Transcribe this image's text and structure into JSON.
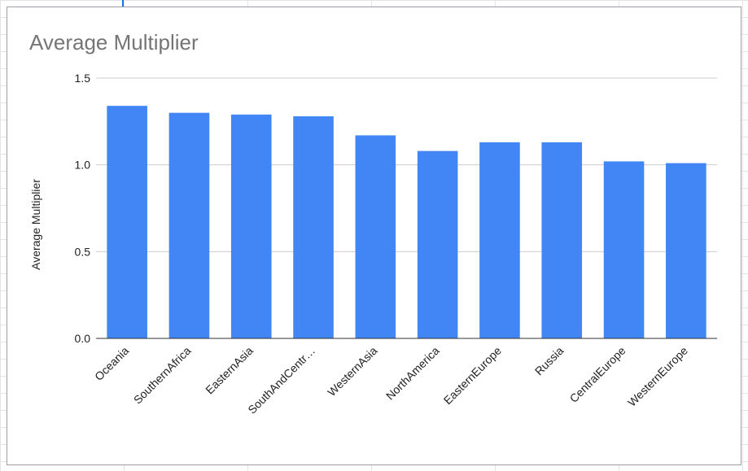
{
  "chart_data": {
    "type": "bar",
    "title": "Average Multiplier",
    "xlabel": "",
    "ylabel": "Average Multiplier",
    "ylim": [
      0,
      1.5
    ],
    "yticks": [
      0.0,
      0.5,
      1.0,
      1.5
    ],
    "ytick_labels": [
      "0.0",
      "0.5",
      "1.0",
      "1.5"
    ],
    "grid": true,
    "legend": "none",
    "bar_color": "#4285f4",
    "categories": [
      "Oceania",
      "SouthernAfrica",
      "EasternAsia",
      "SouthAndCentr…",
      "WesternAsia",
      "NorthAmerica",
      "EasternEurope",
      "Russia",
      "CentralEurope",
      "WesternEurope"
    ],
    "values": [
      1.34,
      1.3,
      1.29,
      1.28,
      1.17,
      1.08,
      1.13,
      1.13,
      1.02,
      1.01
    ]
  }
}
